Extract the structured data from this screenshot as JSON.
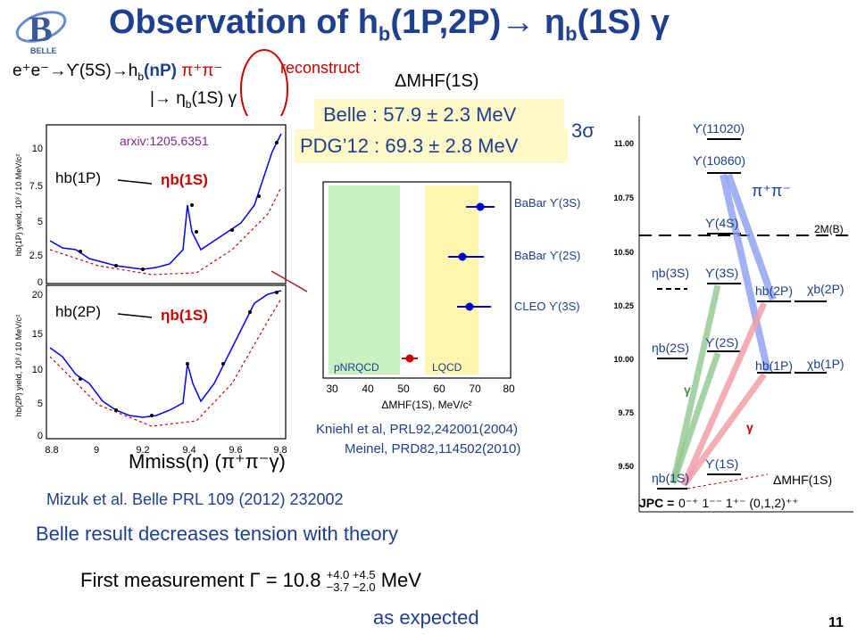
{
  "title": "Observation of  hb(1P,2P)→ ηb(1S) γ",
  "title_parts": {
    "pre": "Observation of  h",
    "sub1": "b",
    "mid": "(1P,2P)→ η",
    "sub2": "b",
    "post": "(1S) γ"
  },
  "logo_text": "BELLE",
  "reaction": {
    "line1_pre": "e⁺e⁻→ϒ(5S)→h",
    "line1_sub": "b",
    "line1_nP": "(nP)",
    "line1_pipi": " π⁺π⁻",
    "line2_pre": "|→ η",
    "line2_sub": "b",
    "line2_post": "(1S) γ",
    "reconstruct": "reconstruct"
  },
  "dm_hf_label": "ΔMHF(1S)",
  "belle_result": "Belle : 57.9 ± 2.3 MeV",
  "pdg_result": "PDG’12 : 69.3 ± 2.8 MeV",
  "significance": "3σ",
  "arxiv": "arxiv:1205.6351",
  "left_plot": {
    "top_panel_label": "hb(1P)",
    "top_panel_eta": "ηb(1S)",
    "bottom_panel_label": "hb(2P)",
    "bottom_panel_eta": "ηb(1S)",
    "top_ylabel": "hb(1P) yield, 10³ / 10 MeV/c²",
    "bottom_ylabel": "hb(2P) yield, 10³ / 10 MeV/c²",
    "top_yticks": [
      "10",
      "7.5",
      "5",
      "2.5",
      "0"
    ],
    "bottom_yticks": [
      "20",
      "15",
      "10",
      "5",
      "0"
    ],
    "xticks": [
      "8.8",
      "9",
      "9.2",
      "9.4",
      "9.6",
      "9.8"
    ],
    "xlabel": "Mmiss(n) (π⁺π⁻γ)"
  },
  "comparison_plot": {
    "experiments": [
      "BaBar ϒ(3S)",
      "BaBar ϒ(2S)",
      "CLEO ϒ(3S)"
    ],
    "bands": [
      "pNRQCD",
      "LQCD"
    ],
    "xticks": [
      "30",
      "40",
      "50",
      "60",
      "70",
      "80"
    ],
    "xlabel": "ΔMHF(1S), MeV/c²"
  },
  "refs": [
    "Kniehl et al, PRL92,242001(2004)",
    "Meinel, PRD82,114502(2010)"
  ],
  "level_diagram": {
    "yticks": [
      "11.00",
      "10.75",
      "10.50",
      "10.25",
      "10.00",
      "9.75",
      "9.50"
    ],
    "levels": [
      "ϒ(11020)",
      "ϒ(10860)",
      "ϒ(4S)",
      "ϒ(3S)",
      "ϒ(2S)",
      "ϒ(1S)",
      "ηb(3S)",
      "ηb(2S)",
      "ηb(1S)",
      "hb(2P)",
      "hb(1P)",
      "χb(2P)",
      "χb(1P)"
    ],
    "threshold": "2M(B)",
    "pipi": "π⁺π⁻",
    "gamma": "γ",
    "dmhf": "ΔMHF(1S)",
    "jpc_label": "JPC =",
    "jpc_values": "0⁻⁺  1⁻⁻    1⁺⁻  (0,1,2)⁺⁺"
  },
  "mizuk": "Mizuk et al. Belle PRL 109 (2012) 232002",
  "conclusion": "Belle result decreases tension with theory",
  "first_measurement": {
    "pre": "First measurement  Γ = 10.8",
    "up": "+4.0  +4.5",
    "down": "−3.7  −2.0",
    "unit": "MeV"
  },
  "as_expected": "as expected",
  "page_number": "11",
  "colors": {
    "title": "#1f3f8f",
    "red": "#cc0000",
    "highlight": "#fff8c8",
    "green_band": "#c8f0c0",
    "yellow_band": "#fff6b0",
    "arrow_blue": "#8a9ef0",
    "arrow_green": "#90c890",
    "arrow_red": "#f0a0a8"
  }
}
